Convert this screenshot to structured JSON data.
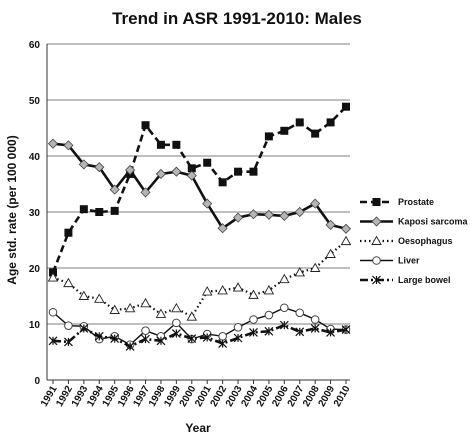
{
  "chart_data": {
    "type": "line",
    "title": "Trend in ASR 1991-2010: Males",
    "xlabel": "Year",
    "ylabel": "Age std. rate (per 100 000)",
    "x": [
      "1991",
      "1992",
      "1993",
      "1994",
      "1995",
      "1996",
      "1997",
      "1998",
      "1999",
      "2000",
      "2001",
      "2002",
      "2003",
      "2004",
      "2005",
      "2006",
      "2007",
      "2008",
      "2009",
      "2010"
    ],
    "y_ticks": [
      0,
      10,
      20,
      30,
      40,
      50,
      60
    ],
    "ylim": [
      0,
      60
    ],
    "grid": "horizontal",
    "legend_position": "right",
    "series": [
      {
        "name": "Prostate",
        "style": "dashed-square",
        "values": [
          19.2,
          26.3,
          30.5,
          30.0,
          30.2,
          36.8,
          45.5,
          42.0,
          42.0,
          37.8,
          38.8,
          35.3,
          37.2,
          37.2,
          43.5,
          44.5,
          46.0,
          44.0,
          46.0,
          48.8
        ]
      },
      {
        "name": "Kaposi sarcoma",
        "style": "solid-diamond",
        "values": [
          42.2,
          41.9,
          38.5,
          38.0,
          34.0,
          37.5,
          33.5,
          36.8,
          37.2,
          36.5,
          31.5,
          27.1,
          29.0,
          29.6,
          29.5,
          29.3,
          30.0,
          31.5,
          27.7,
          27.0
        ]
      },
      {
        "name": "Oesophagus",
        "style": "dotted-triangle",
        "values": [
          18.3,
          17.3,
          15.0,
          14.5,
          12.5,
          12.8,
          13.7,
          11.8,
          12.8,
          11.3,
          15.8,
          16.0,
          16.5,
          15.2,
          16.0,
          18.0,
          19.2,
          20.0,
          22.5,
          24.8
        ]
      },
      {
        "name": "Liver",
        "style": "solid-circle",
        "values": [
          12.1,
          9.7,
          9.6,
          7.3,
          7.8,
          6.3,
          8.8,
          7.8,
          10.2,
          7.3,
          8.2,
          7.8,
          9.4,
          10.8,
          11.6,
          12.9,
          12.0,
          10.8,
          9.1,
          9.0
        ]
      },
      {
        "name": "Large bowel",
        "style": "dashdot-star",
        "values": [
          7.0,
          6.8,
          9.2,
          7.8,
          7.4,
          6.0,
          7.3,
          7.0,
          8.3,
          7.4,
          7.6,
          6.5,
          7.5,
          8.5,
          8.7,
          9.8,
          8.6,
          9.2,
          8.5,
          9.0
        ]
      }
    ]
  }
}
